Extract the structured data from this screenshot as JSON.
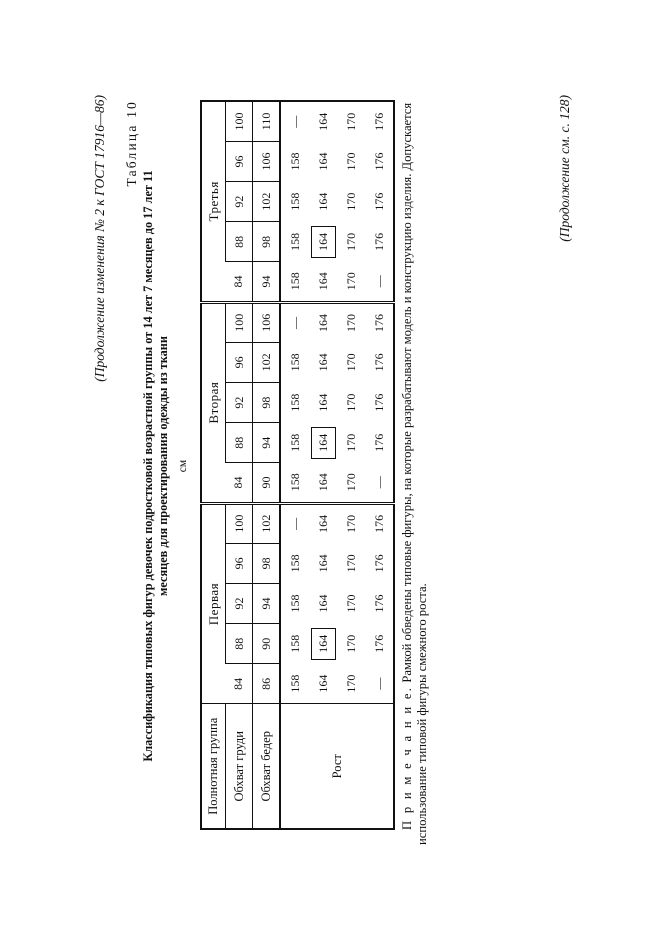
{
  "header": "(Продолжение изменения № 2 к ГОСТ 17916—86)",
  "table_number": "Таблица 10",
  "title_line1": "Классификация типовых фигур девочек подростковой возрастной группы от 14 лет 7 месяцев до 17 лет 11",
  "title_line2": "месяцев для проектирования одежды из ткани",
  "unit": "см",
  "table": {
    "row_labels": {
      "group": "Полнотная группа",
      "chest": "Обхват груди",
      "hips": "Обхват бедер",
      "height": "Рост"
    },
    "groups": [
      {
        "name": "Первая",
        "chest": [
          "84",
          "88",
          "92",
          "96",
          "100"
        ],
        "hips": [
          "86",
          "90",
          "94",
          "98",
          "102"
        ],
        "height_rows": [
          [
            "158",
            "158",
            "158",
            "158",
            "—"
          ],
          [
            "164",
            "164",
            "164",
            "164",
            "164"
          ],
          [
            "170",
            "170",
            "170",
            "170",
            "170"
          ],
          [
            "—",
            "176",
            "176",
            "176",
            "176"
          ]
        ]
      },
      {
        "name": "Вторая",
        "chest": [
          "84",
          "88",
          "92",
          "96",
          "100"
        ],
        "hips": [
          "90",
          "94",
          "98",
          "102",
          "106"
        ],
        "height_rows": [
          [
            "158",
            "158",
            "158",
            "158",
            "—"
          ],
          [
            "164",
            "164",
            "164",
            "164",
            "164"
          ],
          [
            "170",
            "170",
            "170",
            "170",
            "170"
          ],
          [
            "—",
            "176",
            "176",
            "176",
            "176"
          ]
        ]
      },
      {
        "name": "Третья",
        "chest": [
          "84",
          "88",
          "92",
          "96",
          "100"
        ],
        "hips": [
          "94",
          "98",
          "102",
          "106",
          "110"
        ],
        "height_rows": [
          [
            "158",
            "158",
            "158",
            "158",
            "—"
          ],
          [
            "164",
            "164",
            "164",
            "164",
            "164"
          ],
          [
            "170",
            "170",
            "170",
            "170",
            "170"
          ],
          [
            "—",
            "176",
            "176",
            "176",
            "176"
          ]
        ]
      }
    ],
    "boxed_cell": {
      "column": 2,
      "height_row": 2,
      "value": "164"
    }
  },
  "note": {
    "label": "П р и м е ч а н и е.",
    "text": "Рамкой обведены типовые фигуры, на которые разрабатывают модель и конструкцию изделия. Допускается использование типовой фигуры смежного роста."
  },
  "footer": "(Продолжение см. с. 128)"
}
